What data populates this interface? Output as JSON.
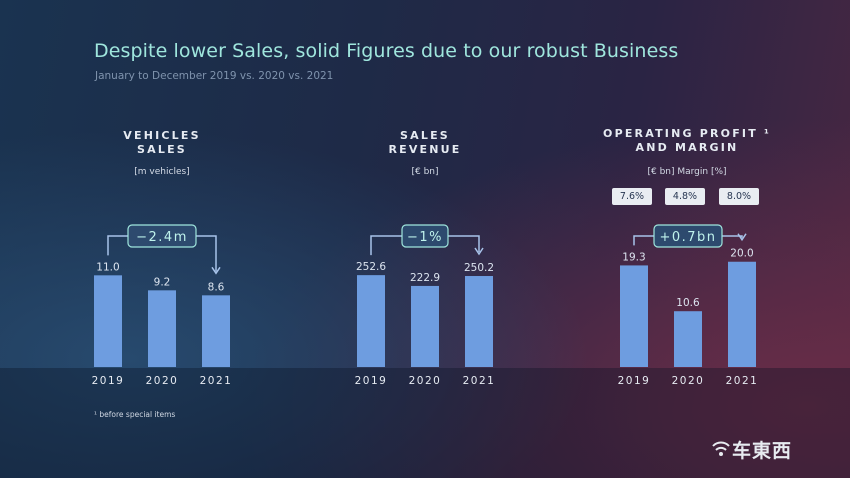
{
  "header": {
    "title": "Despite lower Sales, solid Figures due to our robust Business",
    "subtitle": "January to December 2019 vs. 2020 vs. 2021"
  },
  "footnote": "¹ before special items",
  "watermark": "车東西",
  "colors": {
    "bar": "#6e9de0",
    "accent": "#9fe6dd",
    "bracket": "#a8c3ea",
    "badge_bg": "#2d4a6e"
  },
  "chart_data": [
    {
      "type": "bar",
      "title_line1": "VEHICLES",
      "title_line2": "SALES",
      "unit": "[m vehicles]",
      "categories": [
        "2019",
        "2020",
        "2021"
      ],
      "values": [
        11.0,
        9.2,
        8.6
      ],
      "value_labels": [
        "11.0",
        "9.2",
        "8.6"
      ],
      "ylim": [
        0,
        24
      ],
      "delta": "−2.4m"
    },
    {
      "type": "bar",
      "title_line1": "SALES",
      "title_line2": "REVENUE",
      "unit": "[€ bn]",
      "categories": [
        "2019",
        "2020",
        "2021"
      ],
      "values": [
        252.6,
        222.9,
        250.2
      ],
      "value_labels": [
        "252.6",
        "222.9",
        "250.2"
      ],
      "ylim": [
        0,
        550
      ],
      "delta": "−1%"
    },
    {
      "type": "bar",
      "title_line1": "OPERATING PROFIT ¹",
      "title_line2": "AND MARGIN",
      "unit": "[€ bn] Margin [%]",
      "margins": [
        "7.6%",
        "4.8%",
        "8.0%"
      ],
      "categories": [
        "2019",
        "2020",
        "2021"
      ],
      "values": [
        19.3,
        10.6,
        20.0
      ],
      "value_labels": [
        "19.3",
        "10.6",
        "20.0"
      ],
      "ylim": [
        0,
        38
      ],
      "delta": "+0.7bn"
    }
  ]
}
